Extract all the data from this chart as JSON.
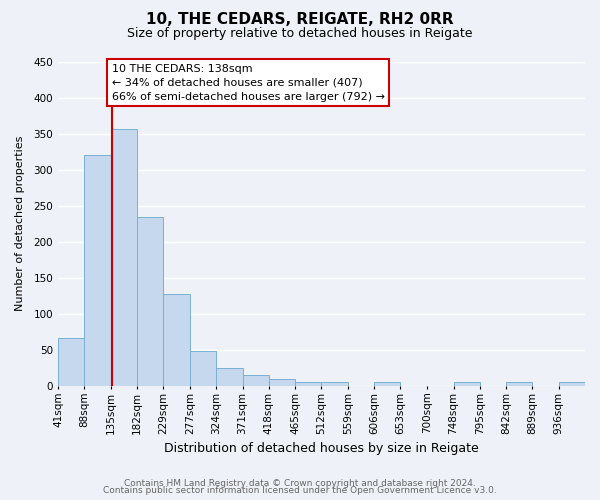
{
  "title": "10, THE CEDARS, REIGATE, RH2 0RR",
  "subtitle": "Size of property relative to detached houses in Reigate",
  "xlabel": "Distribution of detached houses by size in Reigate",
  "ylabel": "Number of detached properties",
  "bar_edges": [
    41,
    88,
    135,
    182,
    229,
    277,
    324,
    371,
    418,
    465,
    512,
    559,
    606,
    653,
    700,
    748,
    795,
    842,
    889,
    936,
    983
  ],
  "bar_heights": [
    67,
    320,
    357,
    234,
    127,
    49,
    25,
    15,
    10,
    5,
    5,
    0,
    5,
    0,
    0,
    5,
    0,
    5,
    0,
    5
  ],
  "bar_color": "#c5d8ed",
  "bar_edge_color": "#7ab0d4",
  "property_size": 138,
  "vline_color": "#cc0000",
  "annotation_line1": "10 THE CEDARS: 138sqm",
  "annotation_line2": "← 34% of detached houses are smaller (407)",
  "annotation_line3": "66% of semi-detached houses are larger (792) →",
  "annotation_box_color": "#ffffff",
  "annotation_box_edge": "#cc0000",
  "ylim": [
    0,
    450
  ],
  "xlim_min": 41,
  "xlim_max": 983,
  "background_color": "#eef2f8",
  "plot_bg_color": "#eef2f8",
  "grid_color": "#ffffff",
  "yticks": [
    0,
    50,
    100,
    150,
    200,
    250,
    300,
    350,
    400,
    450
  ],
  "footer_line1": "Contains HM Land Registry data © Crown copyright and database right 2024.",
  "footer_line2": "Contains public sector information licensed under the Open Government Licence v3.0.",
  "title_fontsize": 11,
  "subtitle_fontsize": 9,
  "xlabel_fontsize": 9,
  "ylabel_fontsize": 8,
  "tick_fontsize": 7.5,
  "footer_fontsize": 6.5,
  "annot_fontsize": 8
}
